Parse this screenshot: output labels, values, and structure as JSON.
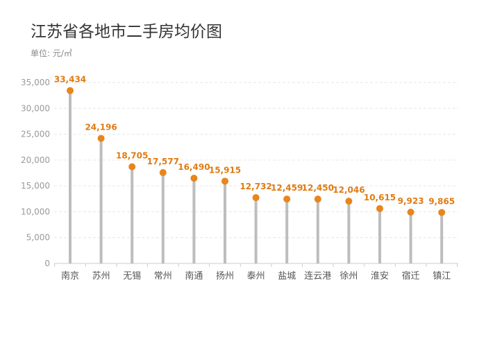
{
  "chart_data": {
    "type": "lollipop",
    "title": "江苏省各地市二手房均价图",
    "unit_label": "单位: 元/㎡",
    "categories": [
      "南京",
      "苏州",
      "无锡",
      "常州",
      "南通",
      "扬州",
      "泰州",
      "盐城",
      "连云港",
      "徐州",
      "淮安",
      "宿迁",
      "镇江"
    ],
    "values": [
      33434,
      24196,
      18705,
      17577,
      16490,
      15915,
      12732,
      12459,
      12450,
      12046,
      10615,
      9923,
      9865
    ],
    "data_labels": [
      "33,434",
      "24,196",
      "18,705",
      "17,577",
      "16,490",
      "15,915",
      "12,732",
      "12,459",
      "12,450",
      "12,046",
      "10,615",
      "9,923",
      "9,865"
    ],
    "ylim": [
      0,
      35000
    ],
    "yticks": [
      0,
      5000,
      10000,
      15000,
      20000,
      25000,
      30000,
      35000
    ],
    "ytick_labels": [
      "0",
      "5,000",
      "10,000",
      "15,000",
      "20,000",
      "25,000",
      "30,000",
      "35,000"
    ],
    "grid": true,
    "colors": {
      "stem": "#bdbdbd",
      "marker": "#e8851c",
      "label": "#e07b12",
      "grid": "#e6e6e6",
      "axis": "#cccccc",
      "tick_text": "#999999",
      "category_text": "#555555"
    }
  }
}
